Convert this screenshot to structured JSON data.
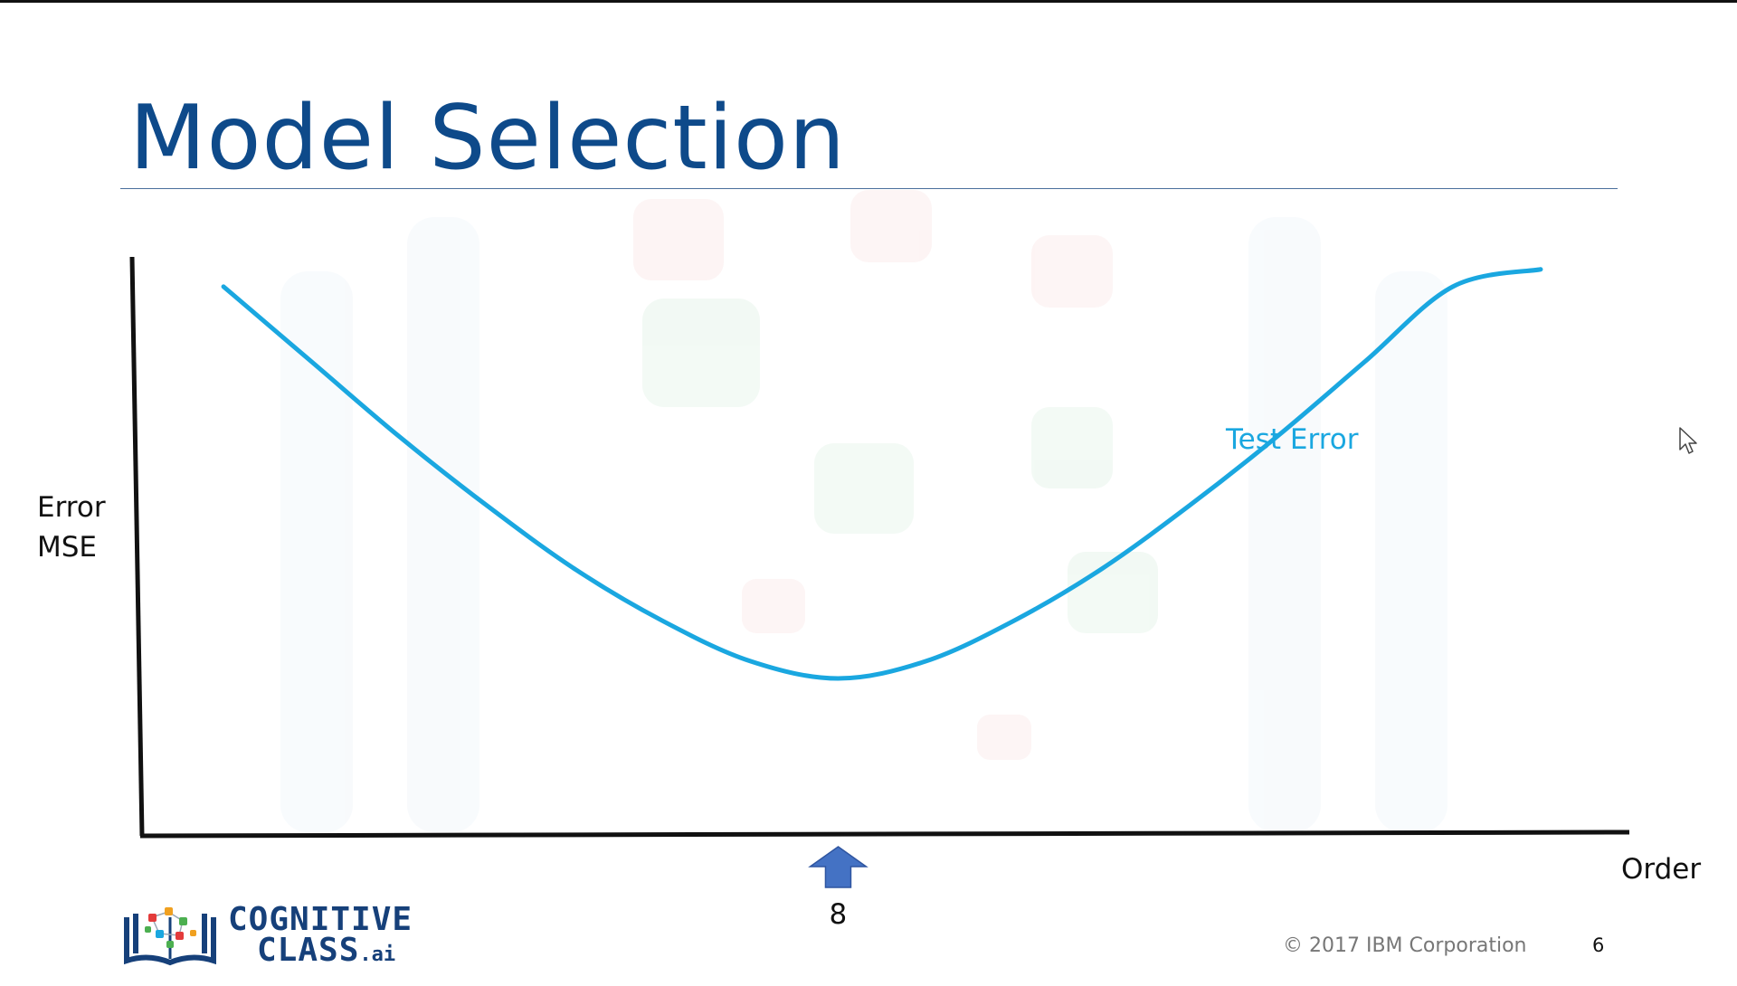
{
  "slide": {
    "title": "Model Selection",
    "footer": {
      "copyright": "© 2017 IBM Corporation",
      "page_number": "6"
    },
    "logo": {
      "line1": "COGNITIVE",
      "line2": "CLASS",
      "suffix": ".ai",
      "icon": "open-book-network-icon"
    },
    "cursor_icon": "mouse-pointer-icon"
  },
  "chart_data": {
    "type": "line",
    "title": "",
    "ylabel_lines": [
      "Error",
      "MSE"
    ],
    "xlabel": "Order",
    "series": [
      {
        "name": "Test Error",
        "color": "#1aa7e0",
        "x": [
          1,
          2,
          3,
          4,
          5,
          6,
          7,
          8,
          9,
          10,
          11,
          12,
          13,
          14,
          15,
          16
        ],
        "y": [
          0.95,
          0.82,
          0.69,
          0.57,
          0.46,
          0.37,
          0.3,
          0.27,
          0.3,
          0.37,
          0.46,
          0.57,
          0.69,
          0.82,
          0.95,
          0.98
        ]
      }
    ],
    "marker": {
      "x": 8,
      "label": "8",
      "icon": "up-arrow-icon",
      "color": "#4472c4"
    },
    "grid": false,
    "axis_color": "#111111"
  }
}
